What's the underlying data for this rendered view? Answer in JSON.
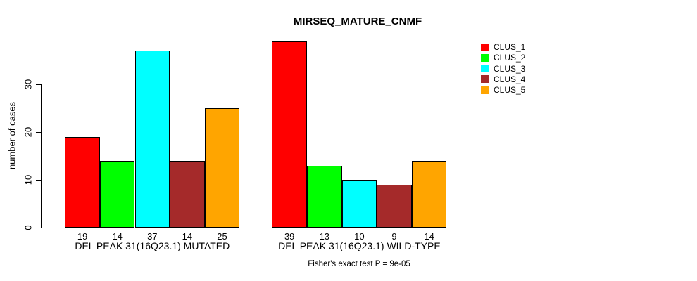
{
  "chart_data": {
    "type": "bar",
    "title": "MIRSEQ_MATURE_CNMF",
    "ylabel": "number of cases",
    "ylim": [
      0,
      40
    ],
    "yticks": [
      0,
      10,
      20,
      30
    ],
    "grid": false,
    "legend_position": "right",
    "series": [
      "CLUS_1",
      "CLUS_2",
      "CLUS_3",
      "CLUS_4",
      "CLUS_5"
    ],
    "series_colors": [
      "#FF0000",
      "#00FF00",
      "#00FFFF",
      "#A52A2A",
      "#FFA500"
    ],
    "categories": [
      "DEL PEAK 31(16Q23.1) MUTATED",
      "DEL PEAK 31(16Q23.1) WILD-TYPE"
    ],
    "values": [
      [
        19,
        14,
        37,
        14,
        25
      ],
      [
        39,
        13,
        10,
        9,
        14
      ]
    ],
    "bar_value_labels_shown": true,
    "annotation": "Fisher's exact test P = 9e-05"
  }
}
